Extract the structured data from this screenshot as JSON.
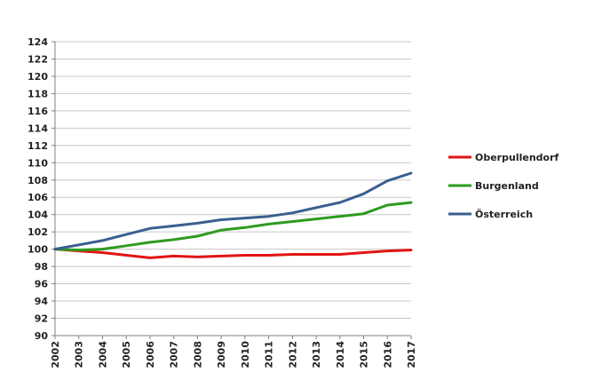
{
  "chart_data": {
    "type": "line",
    "title": "",
    "xlabel": "",
    "ylabel": "",
    "x": [
      2002,
      2003,
      2004,
      2005,
      2006,
      2007,
      2008,
      2009,
      2010,
      2011,
      2012,
      2013,
      2014,
      2015,
      2016,
      2017
    ],
    "ylim": [
      90,
      124
    ],
    "yticks": [
      90,
      92,
      94,
      96,
      98,
      100,
      102,
      104,
      106,
      108,
      110,
      112,
      114,
      116,
      118,
      120,
      122,
      124
    ],
    "grid": true,
    "legend_position": "right",
    "series": [
      {
        "name": "Oberpullendorf",
        "color": "#e31414",
        "values": [
          100,
          99.8,
          99.6,
          99.3,
          99.0,
          99.2,
          99.1,
          99.2,
          99.3,
          99.3,
          99.4,
          99.4,
          99.4,
          99.6,
          99.8,
          99.9
        ]
      },
      {
        "name": "Burgenland",
        "color": "#2e9b1f",
        "values": [
          100,
          99.9,
          100.0,
          100.4,
          100.8,
          101.1,
          101.5,
          102.2,
          102.5,
          102.9,
          103.2,
          103.5,
          103.8,
          104.1,
          105.1,
          105.4
        ]
      },
      {
        "name": "Österreich",
        "color": "#3a5f8f",
        "values": [
          100,
          100.5,
          101.0,
          101.7,
          102.4,
          102.7,
          103.0,
          103.4,
          103.6,
          103.8,
          104.2,
          104.8,
          105.4,
          106.4,
          107.9,
          108.8
        ]
      }
    ]
  }
}
